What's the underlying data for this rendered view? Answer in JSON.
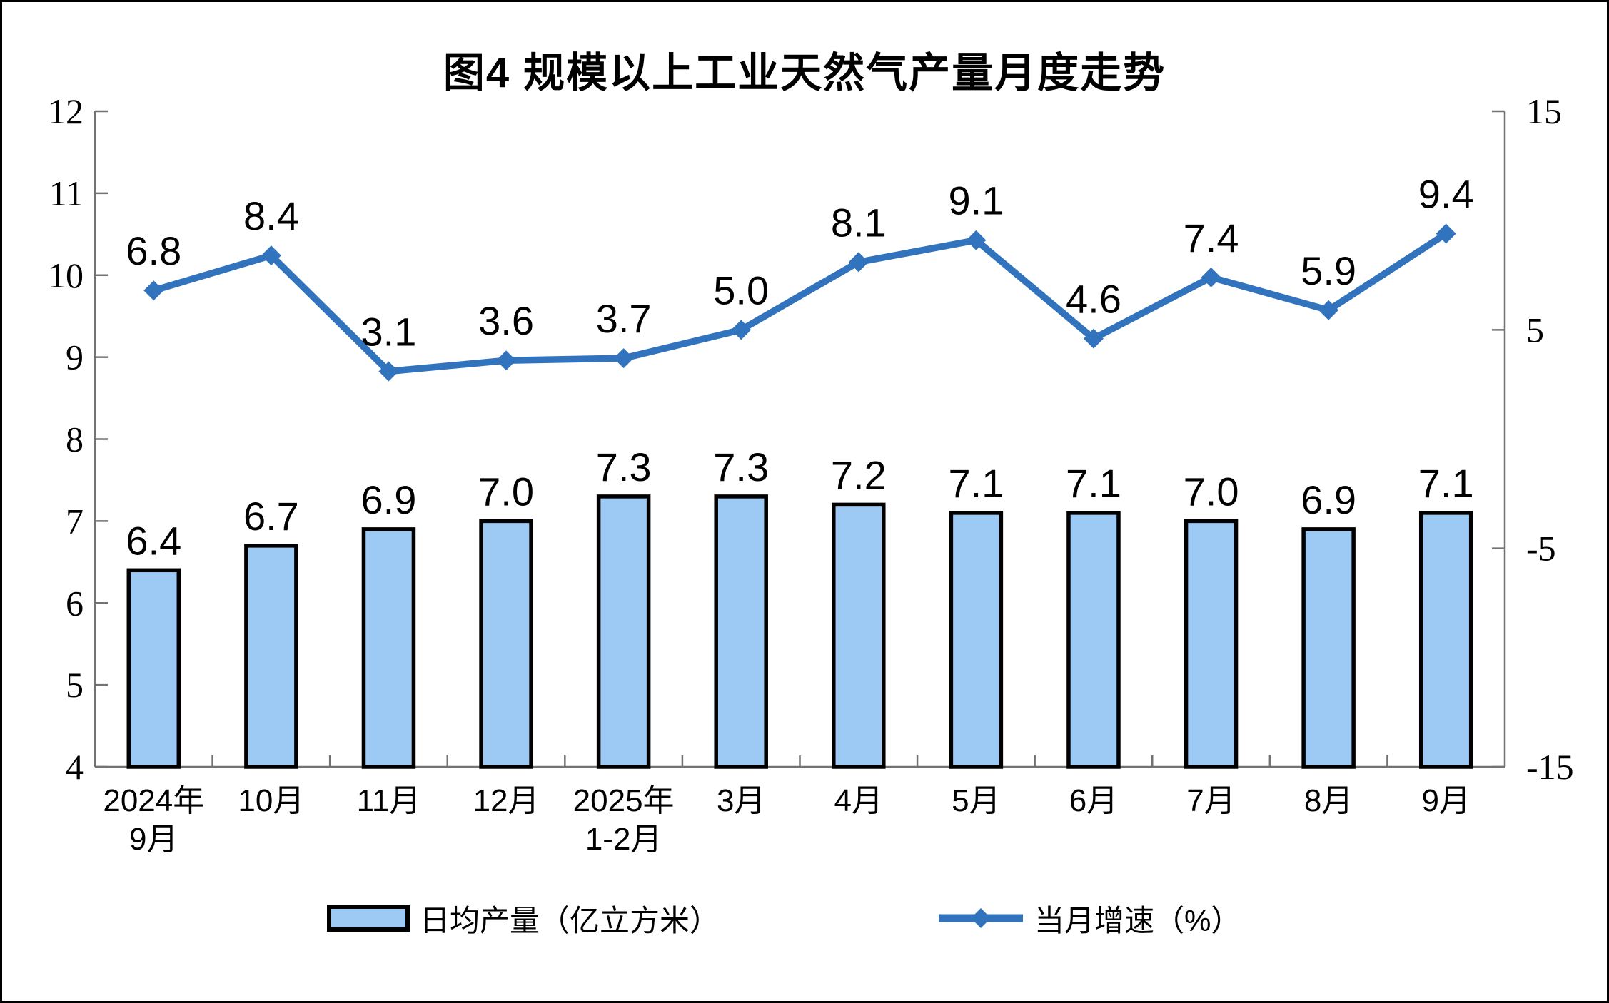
{
  "chart_data": {
    "type": "combo-bar-line",
    "title": "图4 规模以上工业天然气产量月度走势",
    "categories": [
      [
        "2024年",
        "9月"
      ],
      [
        "10月"
      ],
      [
        "11月"
      ],
      [
        "12月"
      ],
      [
        "2025年",
        "1-2月"
      ],
      [
        "3月"
      ],
      [
        "4月"
      ],
      [
        "5月"
      ],
      [
        "6月"
      ],
      [
        "7月"
      ],
      [
        "8月"
      ],
      [
        "9月"
      ]
    ],
    "series": [
      {
        "name": "日均产量（亿立方米）",
        "type": "bar",
        "axis": "left",
        "values": [
          6.4,
          6.7,
          6.9,
          7.0,
          7.3,
          7.3,
          7.2,
          7.1,
          7.1,
          7.0,
          6.9,
          7.1
        ],
        "labels": [
          "6.4",
          "6.7",
          "6.9",
          "7.0",
          "7.3",
          "7.3",
          "7.2",
          "7.1",
          "7.1",
          "7.0",
          "6.9",
          "7.1"
        ],
        "fill": "#9DC9F5",
        "stroke": "#000000"
      },
      {
        "name": "当月增速（%）",
        "type": "line",
        "axis": "right",
        "values": [
          6.8,
          8.4,
          3.1,
          3.6,
          3.7,
          5.0,
          8.1,
          9.1,
          4.6,
          7.4,
          5.9,
          9.4
        ],
        "labels": [
          "6.8",
          "8.4",
          "3.1",
          "3.6",
          "3.7",
          "5.0",
          "8.1",
          "9.1",
          "4.6",
          "7.4",
          "5.9",
          "9.4"
        ],
        "color": "#3273BE",
        "marker": "diamond"
      }
    ],
    "left_axis": {
      "min": 4,
      "max": 12,
      "tick_values": [
        12,
        11,
        10,
        9,
        8,
        7,
        6,
        5,
        4
      ],
      "tick_labels": [
        "12",
        "11",
        "10",
        "9",
        "8",
        "7",
        "6",
        "5",
        "4"
      ]
    },
    "right_axis": {
      "min": -15,
      "max": 15,
      "tick_values": [
        15,
        5,
        -5,
        -15
      ],
      "tick_labels": [
        "15",
        "5",
        "-5",
        "-15"
      ]
    },
    "grid": false,
    "legend_position": "bottom",
    "colors": {
      "axis_line": "#737373",
      "text": "#000000"
    }
  }
}
